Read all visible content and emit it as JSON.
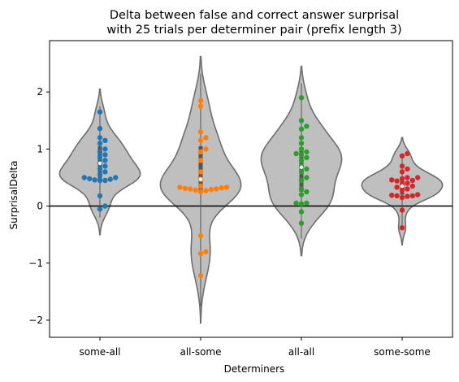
{
  "chart_data": {
    "type": "violin+swarm",
    "title_lines": [
      "Delta between false and correct answer surprisal",
      "with 25 trials per determiner pair (prefix length 3)"
    ],
    "xlabel": "Determiners",
    "ylabel": "SurprisalDelta",
    "ylim": [
      -2.3,
      2.9
    ],
    "yticks": [
      -2,
      -1,
      0,
      1,
      2
    ],
    "yticklabels": [
      "−2",
      "−1",
      "0",
      "1",
      "2"
    ],
    "reference_line_y": 0,
    "violin_color": "#bfbfbf",
    "violin_edge_color": "#6e6e6e",
    "categories": [
      "some-all",
      "all-some",
      "all-all",
      "some-some"
    ],
    "series": [
      {
        "category": "some-all",
        "color": "#1f77b4",
        "median": 0.75,
        "q1": 0.48,
        "q3": 1.05,
        "extent": [
          -0.5,
          2.05
        ],
        "values": [
          1.65,
          1.36,
          1.2,
          1.15,
          1.0,
          0.95,
          0.9,
          0.85,
          0.8,
          0.75,
          0.7,
          0.65,
          0.6,
          0.55,
          0.5,
          0.48,
          0.47,
          0.46,
          0.45,
          0.45,
          0.5,
          0.18,
          0.0,
          -0.05,
          1.1
        ]
      },
      {
        "category": "all-some",
        "color": "#ff7f0e",
        "median": 0.47,
        "q1": 0.25,
        "q3": 1.05,
        "extent": [
          -2.05,
          2.62
        ],
        "values": [
          1.85,
          1.75,
          1.3,
          1.2,
          1.15,
          1.0,
          0.95,
          0.8,
          0.6,
          0.47,
          0.35,
          0.33,
          0.33,
          0.32,
          0.31,
          0.3,
          0.3,
          0.29,
          0.28,
          0.27,
          0.25,
          -0.52,
          -0.8,
          -0.83,
          -1.22
        ]
      },
      {
        "category": "all-all",
        "color": "#2ca02c",
        "median": 0.68,
        "q1": 0.25,
        "q3": 1.0,
        "extent": [
          -0.87,
          2.45
        ],
        "values": [
          1.9,
          1.5,
          1.4,
          1.35,
          1.2,
          1.0,
          0.95,
          0.92,
          0.9,
          0.85,
          0.8,
          0.7,
          0.65,
          0.5,
          0.45,
          0.3,
          0.25,
          0.2,
          0.05,
          0.05,
          0.04,
          -0.1,
          -0.3,
          1.1,
          0.6
        ]
      },
      {
        "category": "some-some",
        "color": "#d62728",
        "median": 0.35,
        "q1": 0.2,
        "q3": 0.5,
        "extent": [
          -0.68,
          1.2
        ],
        "values": [
          0.92,
          0.88,
          0.7,
          0.65,
          0.5,
          0.5,
          0.48,
          0.46,
          0.45,
          0.44,
          0.4,
          0.38,
          0.35,
          0.33,
          0.3,
          0.28,
          0.2,
          0.19,
          0.18,
          0.18,
          0.17,
          0.15,
          -0.07,
          -0.38,
          0.6
        ]
      }
    ]
  }
}
